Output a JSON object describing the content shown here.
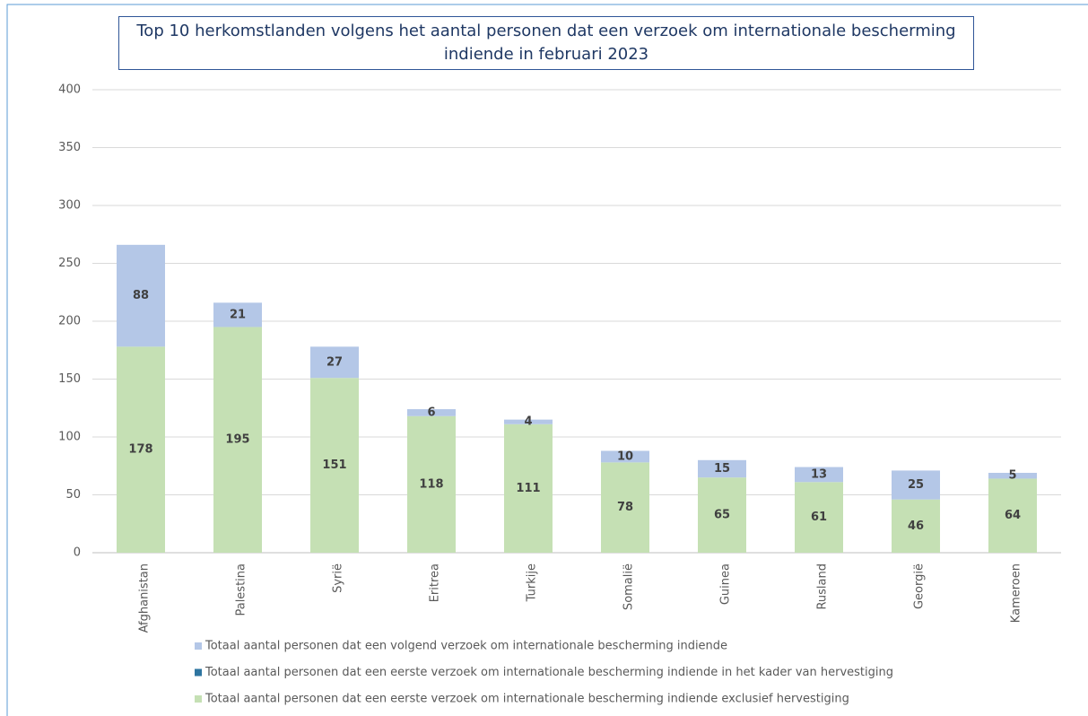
{
  "chart_data": {
    "type": "bar",
    "stacked": true,
    "title": "Top 10 herkomstlanden volgens het aantal personen dat een verzoek om internationale bescherming indiende in februari 2023",
    "categories": [
      "Afghanistan",
      "Palestina",
      "Syrië",
      "Eritrea",
      "Turkije",
      "Somalië",
      "Guinea",
      "Rusland",
      "Georgië",
      "Kameroen"
    ],
    "series": [
      {
        "name": "Totaal aantal personen dat een eerste verzoek om internationale bescherming indiende exclusief hervestiging",
        "color": "#c5e0b4",
        "values": [
          178,
          195,
          151,
          118,
          111,
          78,
          65,
          61,
          46,
          64
        ]
      },
      {
        "name": "Totaal aantal personen dat een eerste verzoek om internationale bescherming indiende in het kader van hervestiging",
        "color": "#2e75a0",
        "values": [
          0,
          0,
          0,
          0,
          0,
          0,
          0,
          0,
          0,
          0
        ]
      },
      {
        "name": "Totaal aantal personen dat een volgend verzoek om internationale bescherming indiende",
        "color": "#b4c7e7",
        "values": [
          88,
          21,
          27,
          6,
          4,
          10,
          15,
          13,
          25,
          5
        ]
      }
    ],
    "ylim": [
      0,
      400
    ],
    "yticks": [
      0,
      50,
      100,
      150,
      200,
      250,
      300,
      350,
      400
    ],
    "grid": true
  }
}
